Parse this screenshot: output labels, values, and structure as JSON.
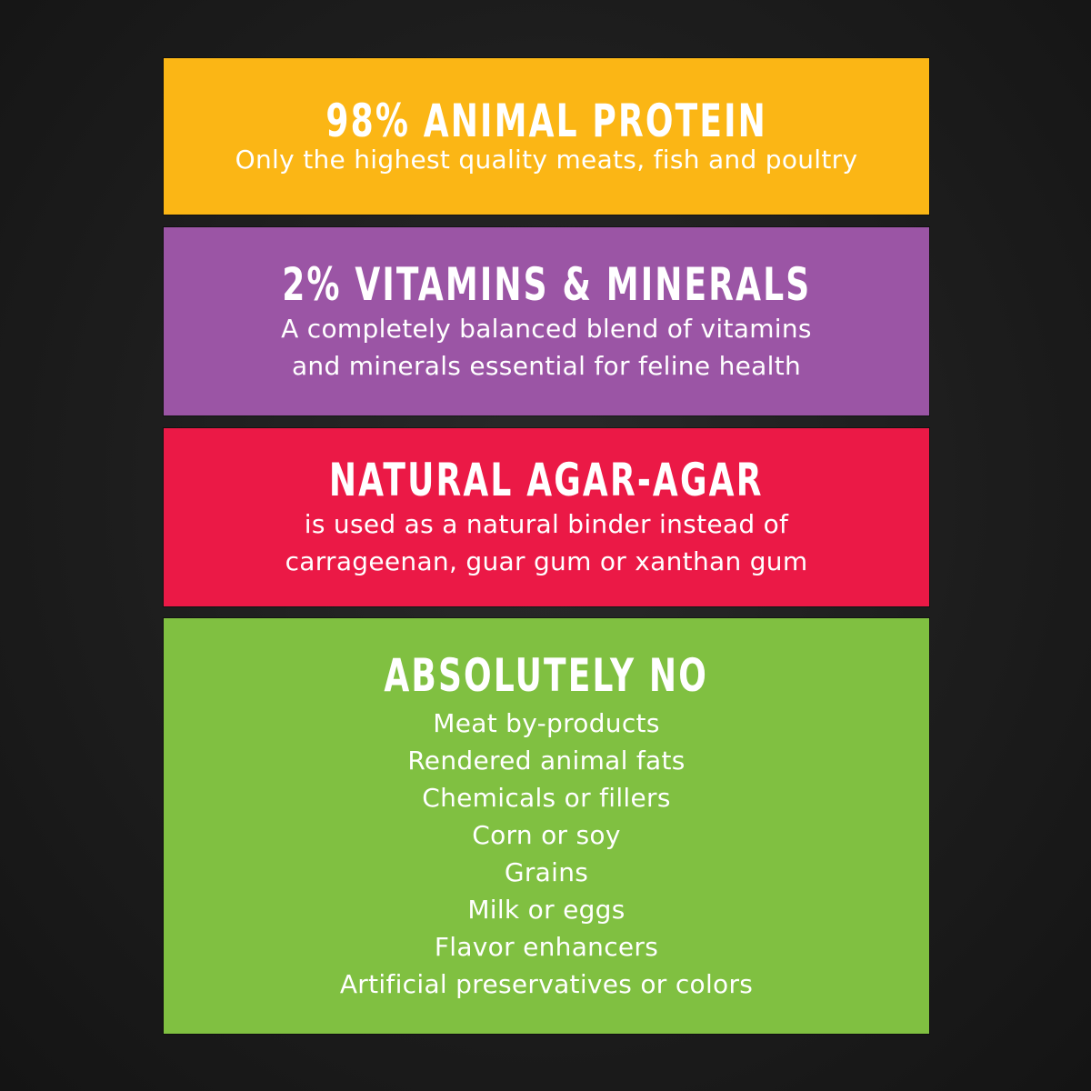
{
  "colors": {
    "background": "#1d1d1d",
    "protein": "#FBB615",
    "vitamins": "#9B55A5",
    "agar": "#EB1946",
    "absolutely_no": "#80C041",
    "text": "#FFFFFF"
  },
  "panels": [
    {
      "title": "98% ANIMAL PROTEIN",
      "lines": [
        "Only the highest quality meats, fish and poultry"
      ]
    },
    {
      "title": "2% VITAMINS & MINERALS",
      "lines": [
        "A completely balanced blend of vitamins",
        "and minerals essential for feline health"
      ]
    },
    {
      "title": "NATURAL AGAR-AGAR",
      "lines": [
        "is used as a natural binder instead of",
        "carrageenan, guar gum or xanthan gum"
      ]
    },
    {
      "title": "ABSOLUTELY NO",
      "lines": [
        "Meat by-products",
        "Rendered animal fats",
        "Chemicals or fillers",
        "Corn or soy",
        "Grains",
        "Milk or eggs",
        "Flavor enhancers",
        "Artificial preservatives or colors"
      ]
    }
  ]
}
